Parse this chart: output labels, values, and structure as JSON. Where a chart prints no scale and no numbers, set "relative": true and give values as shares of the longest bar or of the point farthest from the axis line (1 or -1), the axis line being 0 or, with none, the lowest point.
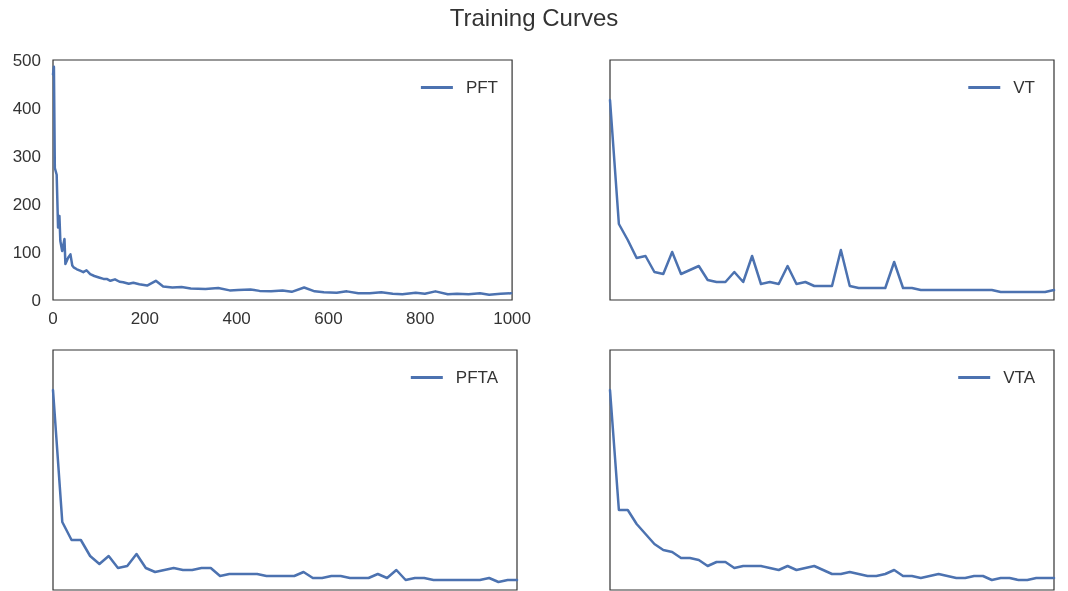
{
  "chart_data": [
    {
      "type": "line",
      "title": "Training Curves",
      "xlim": [
        0,
        1000
      ],
      "xticks": [
        0,
        200,
        400,
        600,
        800,
        1000
      ],
      "ylim": [
        0,
        500
      ],
      "yticks": [
        0,
        100,
        200,
        300,
        400,
        500
      ],
      "grid": false,
      "legend": "top right",
      "series": [
        {
          "name": "PFT",
          "color": "#4c72b0",
          "x": [
            0,
            2,
            4,
            8,
            11,
            14,
            16,
            20,
            25,
            27,
            33,
            38,
            42,
            45,
            52,
            59,
            66,
            73,
            81,
            90,
            100,
            110,
            117,
            125,
            135,
            145,
            153,
            165,
            175,
            188,
            205,
            224,
            240,
            260,
            280,
            300,
            332,
            360,
            385,
            403,
            430,
            450,
            475,
            500,
            520,
            547,
            570,
            590,
            618,
            640,
            665,
            690,
            715,
            740,
            761,
            790,
            810,
            833,
            860,
            880,
            905,
            930,
            950,
            975,
            998
          ],
          "values": [
            470,
            486,
            275,
            261,
            151,
            175,
            123,
            102,
            127,
            75,
            88,
            95,
            72,
            68,
            64,
            61,
            58,
            62,
            54,
            50,
            47,
            44,
            44,
            40,
            43,
            38,
            37,
            34,
            36,
            33,
            30,
            40,
            28,
            26,
            27,
            24,
            23,
            25,
            20,
            21,
            22,
            19,
            18,
            20,
            17,
            26,
            18,
            16,
            15,
            18,
            14,
            14,
            16,
            13,
            12,
            15,
            13,
            18,
            12,
            13,
            12,
            14,
            11,
            13,
            14
          ]
        }
      ]
    },
    {
      "type": "line",
      "relative": true,
      "grid": false,
      "legend": "top right",
      "tick_labels": false,
      "categories": [
        null,
        null,
        null,
        null,
        null,
        null,
        null,
        null,
        null,
        null,
        null,
        null,
        null,
        null,
        null,
        null,
        null,
        null,
        null,
        null,
        null,
        null,
        null,
        null,
        null,
        null,
        null,
        null,
        null,
        null,
        null,
        null,
        null,
        null,
        null,
        null,
        null,
        null,
        null,
        null,
        null,
        null,
        null,
        null,
        null,
        null,
        null,
        null,
        null,
        null,
        null
      ],
      "series": [
        {
          "name": "VT",
          "color": "#4c72b0",
          "values": [
            1,
            0.38,
            0.3,
            0.21,
            0.22,
            0.14,
            0.13,
            0.24,
            0.13,
            0.15,
            0.17,
            0.1,
            0.09,
            0.09,
            0.14,
            0.09,
            0.22,
            0.08,
            0.09,
            0.08,
            0.17,
            0.08,
            0.09,
            0.07,
            0.07,
            0.07,
            0.25,
            0.07,
            0.06,
            0.06,
            0.06,
            0.06,
            0.19,
            0.06,
            0.06,
            0.05,
            0.05,
            0.05,
            0.05,
            0.05,
            0.05,
            0.05,
            0.05,
            0.05,
            0.04,
            0.04,
            0.04,
            0.04,
            0.04,
            0.04,
            0.05
          ]
        }
      ]
    },
    {
      "type": "line",
      "relative": true,
      "grid": false,
      "legend": "top right",
      "tick_labels": false,
      "categories": [
        null,
        null,
        null,
        null,
        null,
        null,
        null,
        null,
        null,
        null,
        null,
        null,
        null,
        null,
        null,
        null,
        null,
        null,
        null,
        null,
        null,
        null,
        null,
        null,
        null,
        null,
        null,
        null,
        null,
        null,
        null,
        null,
        null,
        null,
        null,
        null,
        null,
        null,
        null,
        null,
        null,
        null,
        null,
        null,
        null,
        null,
        null,
        null,
        null,
        null,
        null
      ],
      "series": [
        {
          "name": "PFTA",
          "color": "#4c72b0",
          "values": [
            1,
            0.34,
            0.25,
            0.25,
            0.17,
            0.13,
            0.17,
            0.11,
            0.12,
            0.18,
            0.11,
            0.09,
            0.1,
            0.11,
            0.1,
            0.1,
            0.11,
            0.11,
            0.07,
            0.08,
            0.08,
            0.08,
            0.08,
            0.07,
            0.07,
            0.07,
            0.07,
            0.09,
            0.06,
            0.06,
            0.07,
            0.07,
            0.06,
            0.06,
            0.06,
            0.08,
            0.06,
            0.1,
            0.05,
            0.06,
            0.06,
            0.05,
            0.05,
            0.05,
            0.05,
            0.05,
            0.05,
            0.06,
            0.04,
            0.05,
            0.05
          ]
        }
      ]
    },
    {
      "type": "line",
      "relative": true,
      "grid": false,
      "legend": "top right",
      "tick_labels": false,
      "categories": [
        null,
        null,
        null,
        null,
        null,
        null,
        null,
        null,
        null,
        null,
        null,
        null,
        null,
        null,
        null,
        null,
        null,
        null,
        null,
        null,
        null,
        null,
        null,
        null,
        null,
        null,
        null,
        null,
        null,
        null,
        null,
        null,
        null,
        null,
        null,
        null,
        null,
        null,
        null,
        null,
        null,
        null,
        null,
        null,
        null,
        null,
        null,
        null,
        null,
        null,
        null
      ],
      "series": [
        {
          "name": "VTA",
          "color": "#4c72b0",
          "values": [
            1,
            0.4,
            0.4,
            0.33,
            0.28,
            0.23,
            0.2,
            0.19,
            0.16,
            0.16,
            0.15,
            0.12,
            0.14,
            0.14,
            0.11,
            0.12,
            0.12,
            0.12,
            0.11,
            0.1,
            0.12,
            0.1,
            0.11,
            0.12,
            0.1,
            0.08,
            0.08,
            0.09,
            0.08,
            0.07,
            0.07,
            0.08,
            0.1,
            0.07,
            0.07,
            0.06,
            0.07,
            0.08,
            0.07,
            0.06,
            0.06,
            0.07,
            0.07,
            0.05,
            0.06,
            0.06,
            0.05,
            0.05,
            0.06,
            0.06,
            0.06
          ]
        }
      ]
    }
  ]
}
